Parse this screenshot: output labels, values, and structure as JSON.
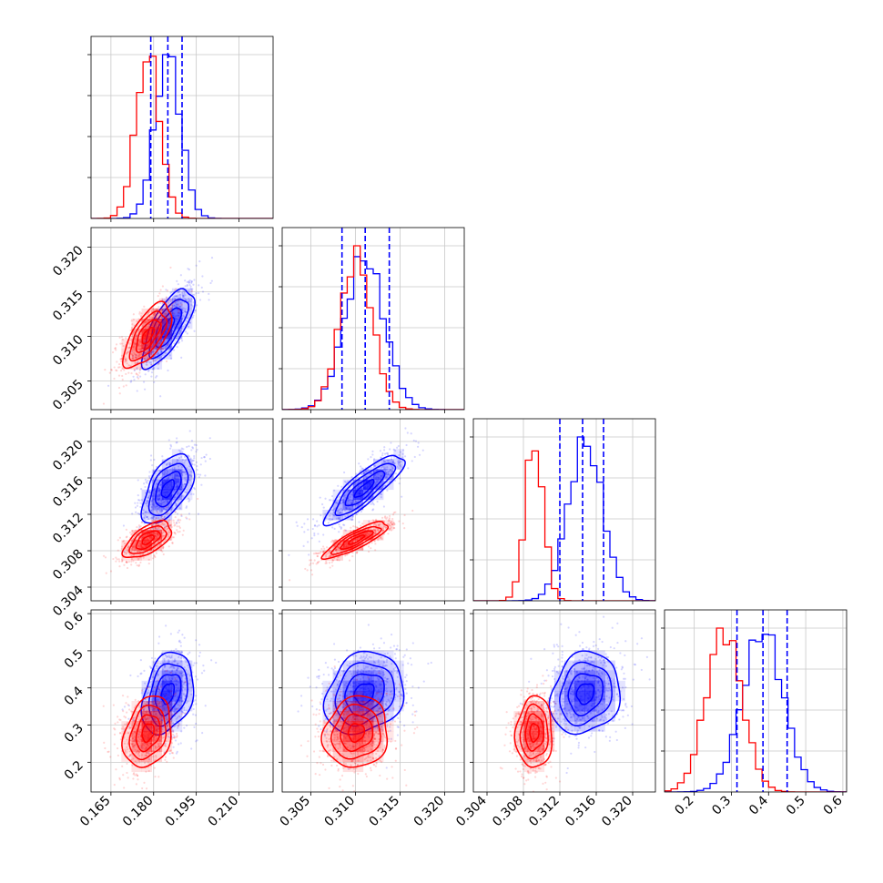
{
  "chart_data": {
    "type": "corner",
    "colors": {
      "blue": "#0000ff",
      "red": "#ff0000"
    },
    "grid": true,
    "series": [
      {
        "color": "blue",
        "mean": [
          0.185,
          0.311,
          0.3148,
          0.385
        ],
        "sd": [
          0.0045,
          0.0022,
          0.0019,
          0.055
        ],
        "quantiles": [
          [
            0.179,
            0.185,
            0.19
          ],
          [
            0.3085,
            0.3111,
            0.3138
          ],
          [
            0.312,
            0.3145,
            0.3168
          ],
          [
            0.315,
            0.385,
            0.45
          ]
        ]
      },
      {
        "color": "red",
        "mean": [
          0.178,
          0.3101,
          0.3092,
          0.28
        ],
        "sd": [
          0.0042,
          0.0018,
          0.001,
          0.048
        ]
      }
    ],
    "correlations": {
      "blue": {
        "1-0": 0.72,
        "2-0": 0.55,
        "2-1": 0.85,
        "3-0": 0.3,
        "3-1": 0.2,
        "3-2": 0.15
      },
      "red": {
        "1-0": 0.65,
        "2-0": 0.6,
        "2-1": 0.85,
        "3-0": 0.25,
        "3-1": 0.1,
        "3-2": 0.05
      }
    },
    "axes": [
      {
        "lim": [
          0.158,
          0.222
        ],
        "ticks": [
          0.165,
          0.18,
          0.195,
          0.21
        ],
        "labels": [
          "0.165",
          "0.180",
          "0.195",
          "0.210"
        ]
      },
      {
        "lim": [
          0.3018,
          0.3222
        ],
        "ticks": [
          0.305,
          0.31,
          0.315,
          0.32
        ],
        "labels": [
          "0.305",
          "0.310",
          "0.315",
          "0.320"
        ]
      },
      {
        "lim": [
          0.3025,
          0.3225
        ],
        "ticks": [
          0.304,
          0.308,
          0.312,
          0.316,
          0.32
        ],
        "labels": [
          "0.304",
          "0.308",
          "0.312",
          "0.316",
          "0.320"
        ]
      },
      {
        "lim": [
          0.12,
          0.61
        ],
        "ticks": [
          0.2,
          0.3,
          0.4,
          0.5,
          0.6
        ],
        "labels": [
          "0.2",
          "0.3",
          "0.4",
          "0.5",
          "0.6"
        ]
      }
    ],
    "diag_hist_ticks": 4
  }
}
